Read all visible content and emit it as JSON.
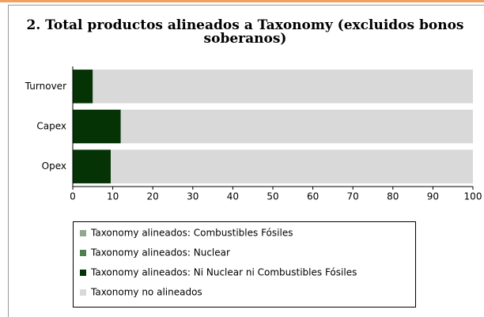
{
  "chart_data": {
    "type": "stacked-barh",
    "title": "2. Total productos alineados a Taxonomy (excluidos bonos soberanos)",
    "categories": [
      "Turnover",
      "Capex",
      "Opex"
    ],
    "series": [
      {
        "name": "Taxonomy alineados: Combustibles Fósiles",
        "color": "#8fa88f",
        "values": [
          0,
          0,
          0
        ]
      },
      {
        "name": "Taxonomy alineados: Nuclear",
        "color": "#4f7f4f",
        "values": [
          0,
          0,
          0
        ]
      },
      {
        "name": "Taxonomy alineados: Ni Nuclear ni Combustibles Fósiles",
        "color": "#053305",
        "values": [
          5,
          12,
          9.5
        ]
      },
      {
        "name": "Taxonomy no alineados",
        "color": "#d9d9d9",
        "values": [
          95,
          88,
          90.5
        ]
      }
    ],
    "xlim": [
      0,
      100
    ],
    "xticks": [
      0,
      10,
      20,
      30,
      40,
      50,
      60,
      70,
      80,
      90,
      100
    ]
  }
}
